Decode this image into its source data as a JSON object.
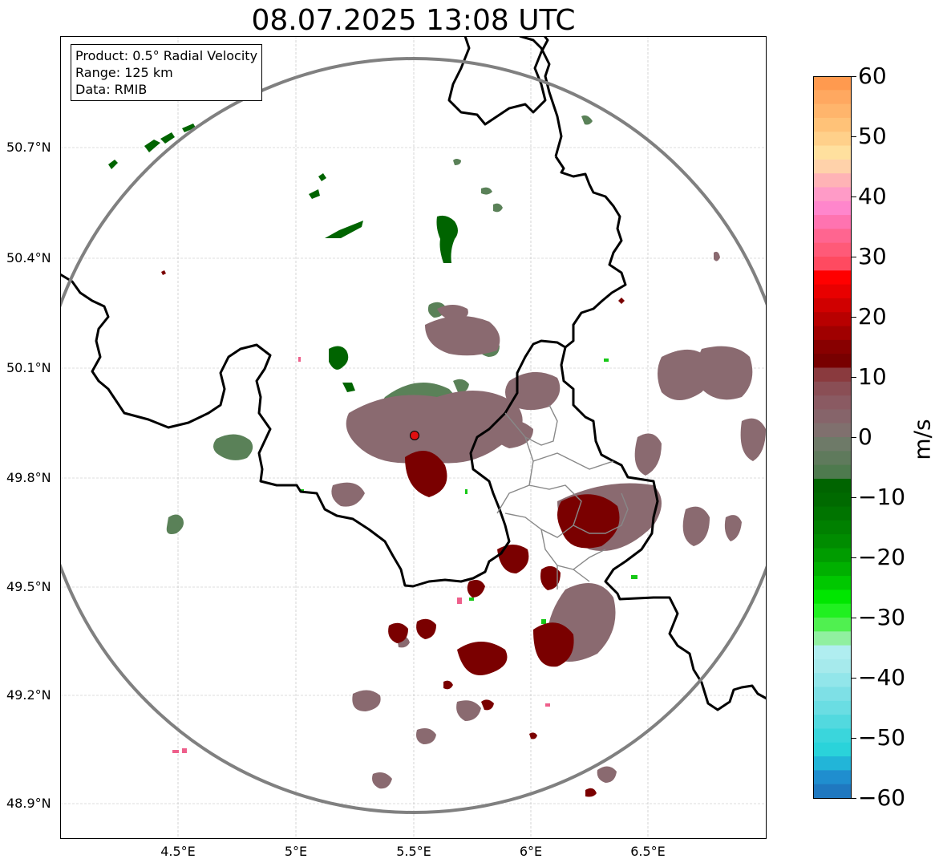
{
  "title": "08.07.2025 13:08 UTC",
  "info_box": {
    "product": "Product: 0.5° Radial Velocity",
    "range": "Range: 125 km",
    "data": "Data: RMIB"
  },
  "lat_labels": [
    "50.7°N",
    "50.4°N",
    "50.1°N",
    "49.8°N",
    "49.5°N",
    "49.2°N",
    "48.9°N"
  ],
  "lon_labels": [
    "4.5°E",
    "5°E",
    "5.5°E",
    "6°E",
    "6.5°E"
  ],
  "colorbar": {
    "unit": "m/s",
    "ticks": [
      "60",
      "50",
      "40",
      "30",
      "20",
      "10",
      "0",
      "−10",
      "−20",
      "−30",
      "−40",
      "−50",
      "−60"
    ],
    "min": -60,
    "max": 60
  },
  "radar_site": {
    "lon": 5.5,
    "lat": 49.91
  },
  "colors": {
    "radar_site": "#e01010",
    "range_ring": "#808080",
    "border": "#000000",
    "approaching": "#006400",
    "receding": "#7a0000"
  }
}
